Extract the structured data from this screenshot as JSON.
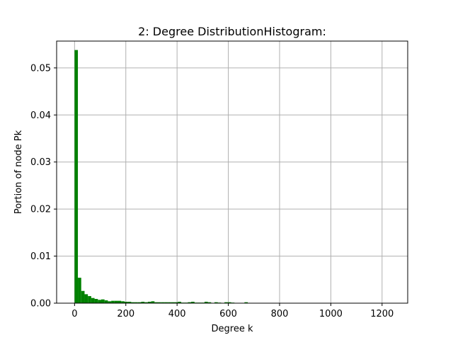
{
  "chart_data": {
    "type": "bar",
    "title": "2: Degree DistributionHistogram:",
    "xlabel": "Degree k",
    "ylabel": "Portion of node Pk",
    "xlim": [
      -70,
      1300
    ],
    "ylim": [
      0,
      0.0557
    ],
    "xticks": [
      0,
      200,
      400,
      600,
      800,
      1000,
      1200
    ],
    "xtick_labels": [
      "0",
      "200",
      "400",
      "600",
      "800",
      "1000",
      "1200"
    ],
    "yticks": [
      0,
      0.01,
      0.02,
      0.03,
      0.04,
      0.05
    ],
    "ytick_labels": [
      "0.00",
      "0.01",
      "0.02",
      "0.03",
      "0.04",
      "0.05"
    ],
    "grid": true,
    "bin_width": 13,
    "color": "#008000",
    "series": [
      {
        "x": [
          0,
          13,
          26,
          39,
          52,
          65,
          78,
          91,
          104,
          117,
          130,
          143,
          156,
          169,
          182,
          195,
          208,
          221,
          234,
          247,
          260,
          273,
          286,
          299,
          312,
          325,
          338,
          351,
          364,
          377,
          390,
          403,
          416,
          429,
          442,
          455,
          468,
          481,
          494,
          507,
          520,
          546,
          559,
          585,
          598,
          611,
          663
        ],
        "values": [
          0.0538,
          0.0054,
          0.0026,
          0.0019,
          0.0015,
          0.0011,
          0.0009,
          0.0007,
          0.0008,
          0.0006,
          0.0004,
          0.0005,
          0.0005,
          0.0005,
          0.0004,
          0.0003,
          0.0003,
          0.0002,
          0.0002,
          0.0002,
          0.0003,
          0.0002,
          0.0003,
          0.0004,
          0.0002,
          0.0002,
          0.0002,
          0.0002,
          0.0002,
          0.0002,
          0.0002,
          0.0003,
          0.0001,
          0.0001,
          0.0002,
          0.0003,
          0.0001,
          0.0001,
          0.0001,
          0.0003,
          0.0002,
          0.0002,
          0.0001,
          0.0002,
          0.0002,
          0.0001,
          0.0002
        ]
      }
    ]
  }
}
